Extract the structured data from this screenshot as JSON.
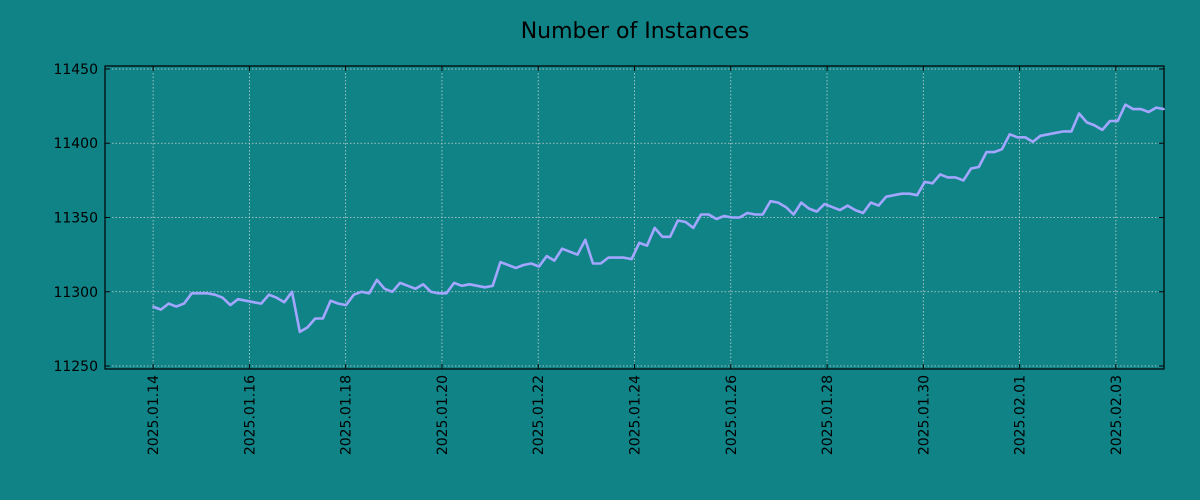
{
  "chart_data": {
    "type": "line",
    "title": "Number of Instances",
    "xlabel": "",
    "ylabel": "",
    "x_start": "2025.01.14",
    "x_end": "2025.02.04",
    "xlim": [
      "2025.01.13",
      "2025.02.04"
    ],
    "ylim": [
      11248,
      11452
    ],
    "yticks": [
      11250,
      11300,
      11350,
      11400,
      11450
    ],
    "xtick_labels": [
      "2025.01.14",
      "2025.01.16",
      "2025.01.18",
      "2025.01.20",
      "2025.01.22",
      "2025.01.24",
      "2025.01.26",
      "2025.01.28",
      "2025.01.30",
      "2025.02.01",
      "2025.02.03"
    ],
    "grid": true,
    "colors": {
      "background": "#108387",
      "line": "#a3a6ff",
      "grid": "#c8d3d4"
    },
    "series": [
      {
        "values": [
          11290,
          11288,
          11292,
          11290,
          11292,
          11299,
          11299,
          11299,
          11298,
          11296,
          11291,
          11295,
          11294,
          11293,
          11292,
          11298,
          11296,
          11293,
          11300,
          11273,
          11276,
          11282,
          11282,
          11294,
          11292,
          11291,
          11298,
          11300,
          11299,
          11308,
          11302,
          11300,
          11306,
          11304,
          11302,
          11305,
          11300,
          11299,
          11299,
          11306,
          11304,
          11305,
          11304,
          11303,
          11304,
          11320,
          11318,
          11316,
          11318,
          11319,
          11317,
          11324,
          11321,
          11329,
          11327,
          11325,
          11335,
          11319,
          11319,
          11323,
          11323,
          11323,
          11322,
          11333,
          11331,
          11343,
          11337,
          11337,
          11348,
          11347,
          11343,
          11352,
          11352,
          11349,
          11351,
          11350,
          11350,
          11353,
          11352,
          11352,
          11361,
          11360,
          11357,
          11352,
          11360,
          11356,
          11354,
          11359,
          11357,
          11355,
          11358,
          11355,
          11353,
          11360,
          11358,
          11364,
          11365,
          11366,
          11366,
          11365,
          11374,
          11373,
          11379,
          11377,
          11377,
          11375,
          11383,
          11384,
          11394,
          11394,
          11396,
          11406,
          11404,
          11404,
          11401,
          11405,
          11406,
          11407,
          11408,
          11408,
          11420,
          11414,
          11412,
          11409,
          11415,
          11415,
          11426,
          11423,
          11423,
          11421,
          11424,
          11423
        ]
      }
    ]
  }
}
